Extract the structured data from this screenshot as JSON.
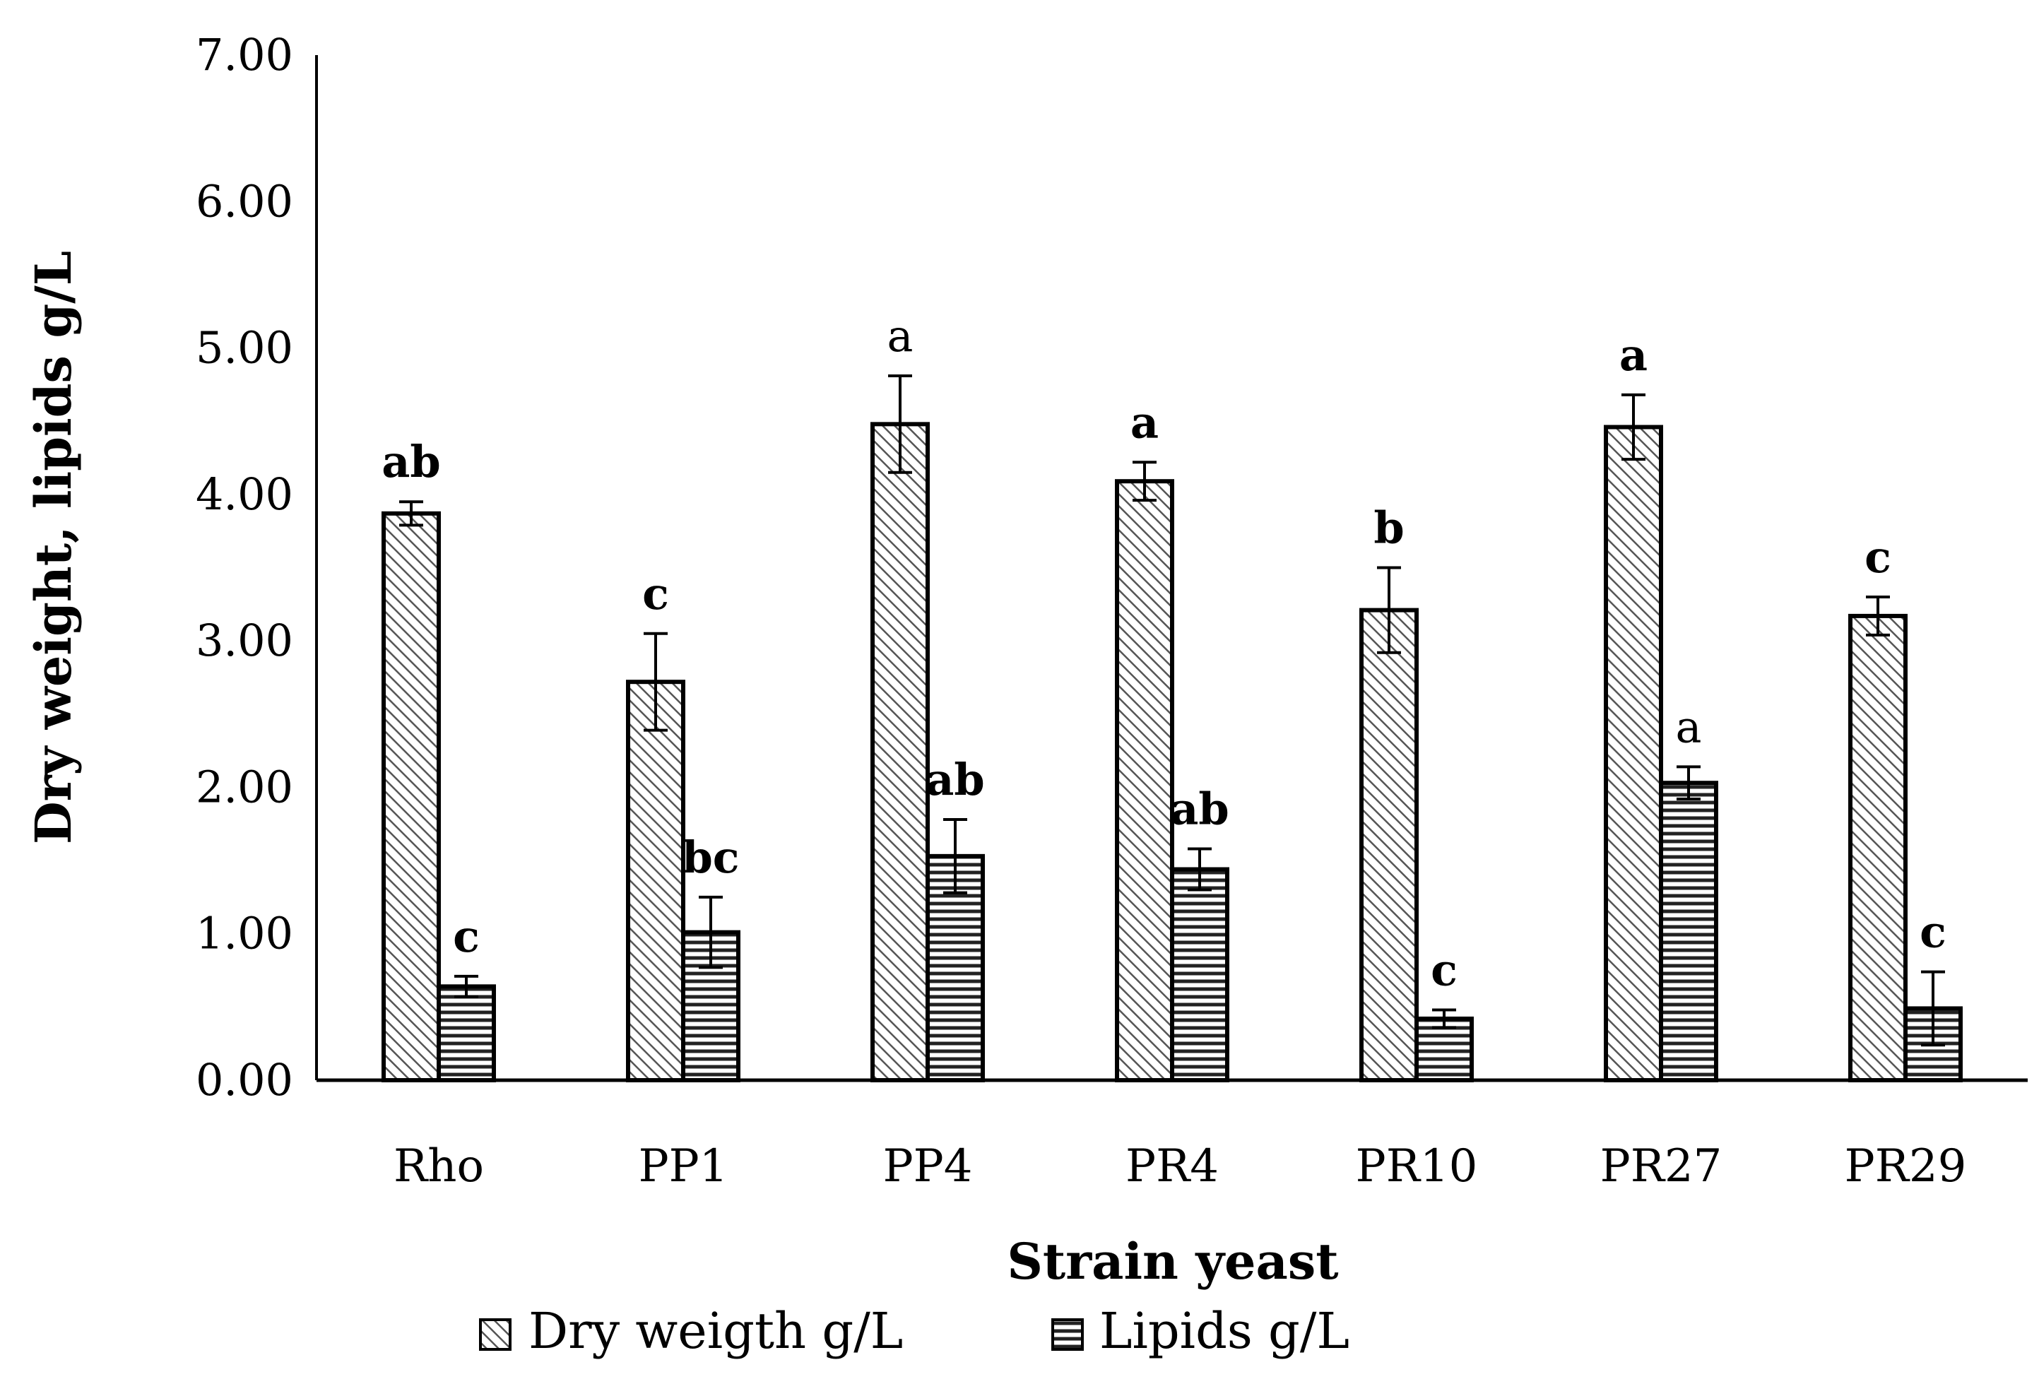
{
  "chart_data": {
    "type": "bar",
    "title": "",
    "xlabel": "Strain yeast",
    "ylabel": "Dry weight, lipids g/L",
    "ylim": [
      0,
      7
    ],
    "yticks": [
      "0.00",
      "1.00",
      "2.00",
      "3.00",
      "4.00",
      "5.00",
      "6.00",
      "7.00"
    ],
    "grid": false,
    "legend_position": "bottom",
    "categories": [
      "Rho",
      "PP1",
      "PP4",
      "PR4",
      "PR10",
      "PR27",
      "PR29"
    ],
    "series": [
      {
        "name": "Dry weigth g/L",
        "pattern": "diagonal",
        "values": [
          3.87,
          2.72,
          4.48,
          4.09,
          3.21,
          4.46,
          3.17
        ],
        "errors": [
          0.08,
          0.33,
          0.33,
          0.13,
          0.29,
          0.22,
          0.13
        ],
        "labels": [
          "ab",
          "c",
          "a",
          "a",
          "b",
          "a",
          "c"
        ],
        "labels_bold": [
          true,
          true,
          false,
          true,
          true,
          true,
          true
        ]
      },
      {
        "name": "Lipids g/L",
        "pattern": "horizontal",
        "values": [
          0.64,
          1.01,
          1.53,
          1.44,
          0.42,
          2.03,
          0.49
        ],
        "errors": [
          0.07,
          0.24,
          0.25,
          0.14,
          0.06,
          0.11,
          0.25
        ],
        "labels": [
          "c",
          "bc",
          "ab",
          "ab",
          "c",
          "a",
          "c"
        ],
        "labels_bold": [
          true,
          true,
          true,
          true,
          true,
          false,
          true
        ]
      }
    ]
  }
}
